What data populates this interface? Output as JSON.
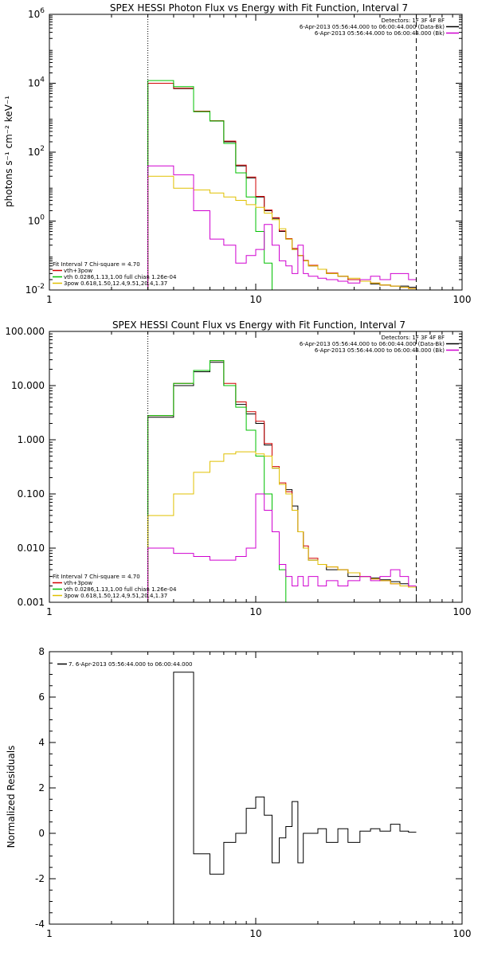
{
  "chart_data": [
    {
      "type": "line",
      "title": "SPEX HESSI Photon Flux vs Energy with Fit Function, Interval 7",
      "xlabel": "",
      "ylabel": "photons s⁻¹ cm⁻² keV⁻¹",
      "xscale": "log",
      "yscale": "log",
      "xlim": [
        1,
        100
      ],
      "ylim": [
        0.01,
        1000000
      ],
      "x_ticks": [
        "1",
        "10",
        "100"
      ],
      "y_ticks": [
        {
          "base": "10",
          "exp": "-2",
          "value": 0.01
        },
        {
          "base": "10",
          "exp": "0",
          "value": 1
        },
        {
          "base": "10",
          "exp": "2",
          "value": 100
        },
        {
          "base": "10",
          "exp": "4",
          "value": 10000
        },
        {
          "base": "10",
          "exp": "6",
          "value": 1000000
        }
      ],
      "vlines": [
        {
          "x": 3,
          "style": "dotted"
        },
        {
          "x": 60,
          "style": "dashed"
        }
      ],
      "legend_top_right": {
        "position": "top-right",
        "entries": [
          {
            "text": "Detectors: 1F 3F 4F 8F",
            "color": ""
          },
          {
            "text": "6-Apr-2013 05:56:44.000 to 06:00:44.000 (Data-Bk)",
            "color": "#000000"
          },
          {
            "text": "6-Apr-2013 05:56:44.000 to 06:00:44.000 (Bk)",
            "color": "#d000d0"
          }
        ]
      },
      "legend_bottom_left": {
        "position": "bottom-left",
        "entries": [
          {
            "text": "Fit Interval 7   Chi-square = 4.70",
            "color": ""
          },
          {
            "text": "vth+3pow",
            "color": "#d00000"
          },
          {
            "text": "vth 0.0286,1.13,1.00  full chian 1.26e-04",
            "color": "#00c000"
          },
          {
            "text": "3pow 0.618,1.50,12.4,9.51,20.4,1.37",
            "color": "#e0c000"
          }
        ]
      },
      "bin_edges": [
        3,
        4,
        5,
        6,
        7,
        8,
        9,
        10,
        11,
        12,
        13,
        14,
        15,
        16,
        17,
        18,
        20,
        22,
        25,
        28,
        32,
        36,
        40,
        45,
        50,
        55,
        60
      ],
      "series": [
        {
          "name": "Data-Bk",
          "color": "#000000",
          "values": [
            10000,
            7000,
            1500,
            800,
            200,
            40,
            18,
            5,
            2,
            1.2,
            0.5,
            0.3,
            0.15,
            0.1,
            0.07,
            0.05,
            0.04,
            0.03,
            0.025,
            0.02,
            0.018,
            0.015,
            0.014,
            0.013,
            0.013,
            0.012
          ]
        },
        {
          "name": "vth+3pow",
          "color": "#d00000",
          "values": [
            10000,
            7200,
            1550,
            820,
            210,
            42,
            19,
            5.2,
            2.1,
            1.25,
            0.52,
            0.31,
            0.16,
            0.1,
            0.072,
            0.052,
            0.04,
            0.031,
            0.025,
            0.02,
            0.018,
            0.016,
            0.014,
            0.013,
            0.012,
            0.011
          ]
        },
        {
          "name": "vth",
          "color": "#00c000",
          "values": [
            12000,
            8000,
            1500,
            800,
            180,
            25,
            5,
            0.5,
            0.06,
            0.01
          ]
        },
        {
          "name": "3pow",
          "color": "#e0c000",
          "values": [
            20,
            9,
            8,
            6.5,
            5,
            4,
            3,
            2.5,
            1.7,
            1.1,
            0.6,
            0.3,
            0.15,
            0.1,
            0.07,
            0.05,
            0.04,
            0.03,
            0.025,
            0.022,
            0.018,
            0.016,
            0.014,
            0.013,
            0.012,
            0.011
          ]
        },
        {
          "name": "Bk",
          "color": "#d000d0",
          "values": [
            40,
            22,
            2,
            0.3,
            0.2,
            0.06,
            0.1,
            0.15,
            0.8,
            0.2,
            0.07,
            0.05,
            0.03,
            0.2,
            0.03,
            0.025,
            0.022,
            0.02,
            0.018,
            0.016,
            0.02,
            0.025,
            0.02,
            0.03,
            0.03,
            0.02
          ]
        }
      ]
    },
    {
      "type": "line",
      "title": "SPEX HESSI Count Flux vs Energy with Fit Function, Interval 7",
      "xlabel": "",
      "ylabel": "",
      "xscale": "log",
      "yscale": "log",
      "xlim": [
        1,
        100
      ],
      "ylim": [
        0.001,
        100
      ],
      "x_ticks": [
        "1",
        "10",
        "100"
      ],
      "y_ticks": [
        {
          "label": "100.000",
          "value": 100
        },
        {
          "label": "10.000",
          "value": 10
        },
        {
          "label": "1.000",
          "value": 1
        },
        {
          "label": "0.100",
          "value": 0.1
        },
        {
          "label": "0.010",
          "value": 0.01
        },
        {
          "label": "0.001",
          "value": 0.001
        }
      ],
      "vlines": [
        {
          "x": 3,
          "style": "dotted"
        },
        {
          "x": 60,
          "style": "dashed"
        }
      ],
      "legend_top_right": {
        "position": "top-right",
        "entries": [
          {
            "text": "Detectors: 1F 3F 4F 8F",
            "color": ""
          },
          {
            "text": "6-Apr-2013 05:56:44.000 to 06:00:44.000 (Data-Bk)",
            "color": "#000000"
          },
          {
            "text": "6-Apr-2013 05:56:44.000 to 06:00:44.000 (Bk)",
            "color": "#d000d0"
          }
        ]
      },
      "legend_bottom_left": {
        "position": "bottom-left",
        "entries": [
          {
            "text": "Fit Interval 7   Chi-square = 4.70",
            "color": ""
          },
          {
            "text": "vth+3pow",
            "color": "#d00000"
          },
          {
            "text": "vth 0.0286,1.13,1.00  full chian 1.26e-04",
            "color": "#00c000"
          },
          {
            "text": "3pow 0.618,1.50,12.4,9.51,20.4,1.37",
            "color": "#e0c000"
          }
        ]
      },
      "bin_edges": [
        3,
        4,
        5,
        6,
        7,
        8,
        9,
        10,
        11,
        12,
        13,
        14,
        15,
        16,
        17,
        18,
        20,
        22,
        25,
        28,
        32,
        36,
        40,
        45,
        50,
        55,
        60
      ],
      "series": [
        {
          "name": "Data-Bk",
          "color": "#000000",
          "values": [
            2.6,
            10,
            18,
            27,
            10,
            4.5,
            3,
            2,
            0.8,
            0.3,
            0.15,
            0.12,
            0.06,
            0.02,
            0.01,
            0.006,
            0.005,
            0.004,
            0.004,
            0.003,
            0.003,
            0.0028,
            0.0026,
            0.0024,
            0.0022,
            0.002
          ]
        },
        {
          "name": "vth+3pow",
          "color": "#d00000",
          "values": [
            2.8,
            11,
            19,
            29,
            11,
            5,
            3.3,
            2.2,
            0.85,
            0.32,
            0.16,
            0.11,
            0.05,
            0.02,
            0.011,
            0.0065,
            0.005,
            0.0045,
            0.004,
            0.0035,
            0.003,
            0.0027,
            0.0025,
            0.0022,
            0.002,
            0.0019
          ]
        },
        {
          "name": "vth",
          "color": "#00c000",
          "values": [
            2.8,
            11,
            19,
            29,
            10,
            4,
            1.5,
            0.5,
            0.1,
            0.02,
            0.004,
            0.001
          ]
        },
        {
          "name": "3pow",
          "color": "#e0c000",
          "values": [
            0.04,
            0.1,
            0.25,
            0.4,
            0.55,
            0.6,
            0.6,
            0.55,
            0.5,
            0.3,
            0.15,
            0.1,
            0.05,
            0.02,
            0.01,
            0.006,
            0.005,
            0.0045,
            0.004,
            0.0035,
            0.003,
            0.0027,
            0.0025,
            0.0022,
            0.002,
            0.0019
          ]
        },
        {
          "name": "Bk",
          "color": "#d000d0",
          "values": [
            0.01,
            0.008,
            0.007,
            0.006,
            0.006,
            0.007,
            0.01,
            0.1,
            0.05,
            0.02,
            0.005,
            0.003,
            0.002,
            0.003,
            0.002,
            0.003,
            0.002,
            0.0025,
            0.002,
            0.0025,
            0.003,
            0.0025,
            0.003,
            0.004,
            0.003,
            0.002
          ]
        }
      ]
    },
    {
      "type": "line",
      "title": "",
      "xlabel": "",
      "ylabel": "Normalized Residuals",
      "xscale": "log",
      "yscale": "linear",
      "xlim": [
        1,
        100
      ],
      "ylim": [
        -4,
        8
      ],
      "x_ticks": [
        "1",
        "10",
        "100"
      ],
      "y_ticks": [
        "-4",
        "-2",
        "0",
        "2",
        "4",
        "6",
        "8"
      ],
      "legend": {
        "position": "top-left",
        "entries": [
          {
            "text": "7.  6-Apr-2013 05:56:44.000 to 06:00:44.000",
            "color": "#000000"
          }
        ]
      },
      "bin_edges": [
        3,
        4,
        5,
        6,
        7,
        8,
        9,
        10,
        11,
        12,
        13,
        14,
        15,
        16,
        17,
        18,
        20,
        22,
        25,
        28,
        32,
        36,
        40,
        45,
        50,
        55,
        60
      ],
      "series": [
        {
          "name": "",
          "color": "#000000",
          "values": [
            -4,
            7.1,
            -0.9,
            -1.8,
            -0.4,
            0,
            1.1,
            1.6,
            0.8,
            -1.3,
            -0.2,
            0.3,
            1.4,
            -1.3,
            0,
            0,
            0.2,
            -0.4,
            0.2,
            -0.4,
            0.1,
            0.2,
            0.1,
            0.4,
            0.1,
            0.05
          ]
        }
      ]
    }
  ]
}
